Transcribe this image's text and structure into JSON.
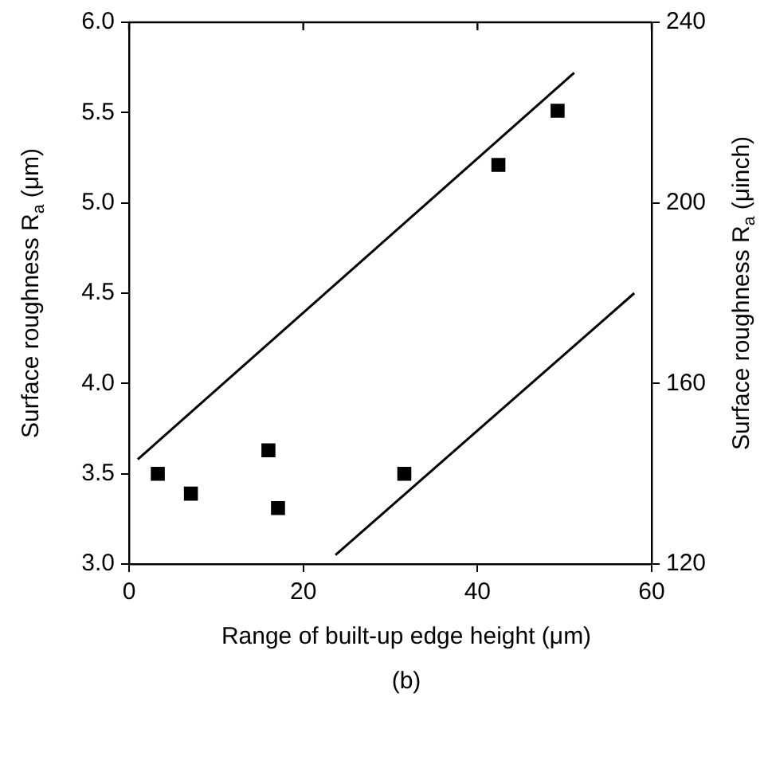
{
  "chart_data": {
    "type": "scatter",
    "xlabel": "Range of built-up edge height (μm)",
    "ylabel": "Surface roughness R$_{a}$ (μm)",
    "y2label": "Surface roughness R$_{a}$ (μinch)",
    "annotations": [
      "(b)"
    ],
    "xlim": [
      0,
      60
    ],
    "xticks": [
      0,
      20,
      40,
      60
    ],
    "ylim": [
      3.0,
      6.0
    ],
    "yticks": [
      {
        "value": 3,
        "label": "3.0"
      },
      3.5,
      {
        "value": 4,
        "label": "4.0"
      },
      4.5,
      {
        "value": 5,
        "label": "5.0"
      },
      5.5,
      {
        "value": 6,
        "label": "6.0"
      }
    ],
    "y2lim": [
      120,
      240
    ],
    "y2ticks": [
      120,
      160,
      200,
      240
    ],
    "series": [
      {
        "marker": "square",
        "color": "#000000",
        "x": [
          3.3,
          7.1,
          16.0,
          17.1,
          31.6,
          42.4,
          49.2
        ],
        "values": [
          3.5,
          3.39,
          3.63,
          3.31,
          3.5,
          5.21,
          5.51
        ]
      },
      {
        "type": "line",
        "marker": "none",
        "color": "#000000",
        "x": [
          1.0,
          51.1
        ],
        "values": [
          3.58,
          5.72
        ]
      },
      {
        "type": "line",
        "marker": "none",
        "color": "#000000",
        "x": [
          23.7,
          58.0
        ],
        "values": [
          3.05,
          4.5
        ]
      }
    ]
  }
}
